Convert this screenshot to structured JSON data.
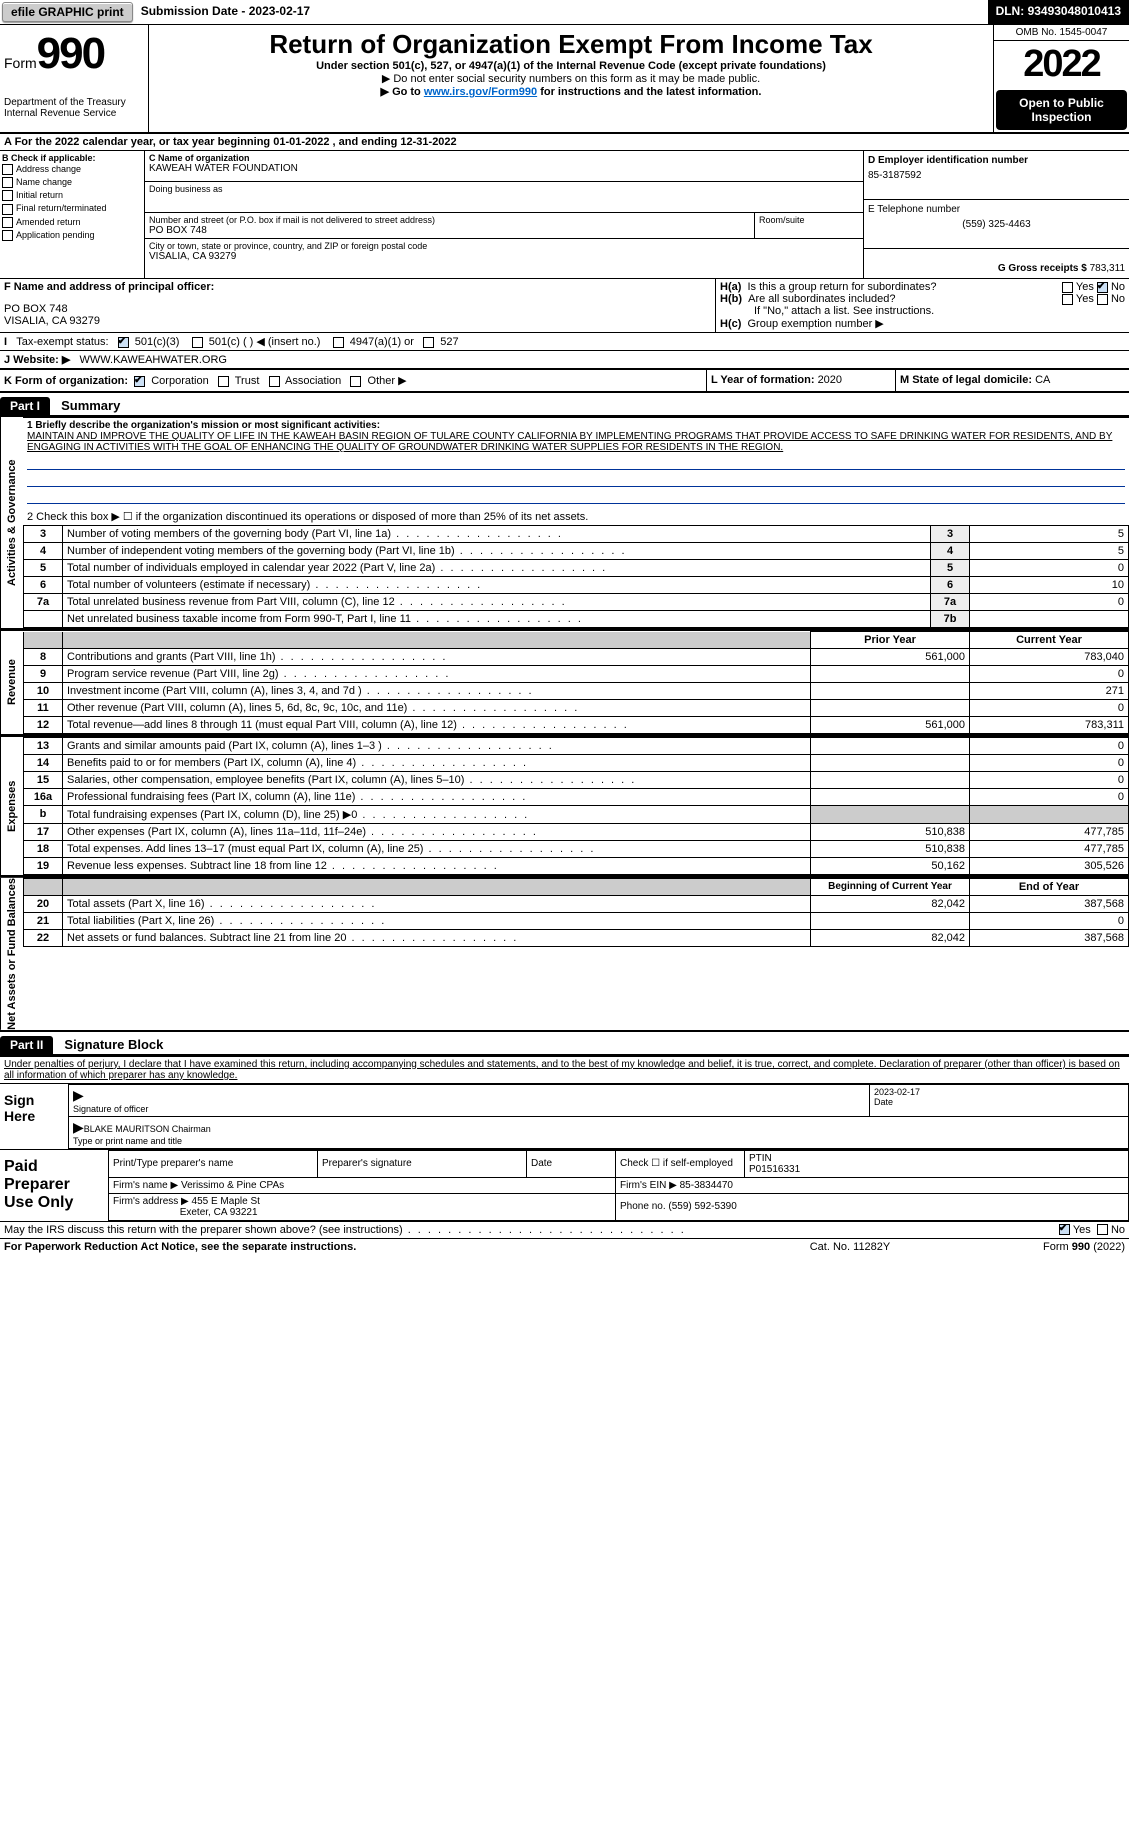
{
  "topbar": {
    "efile": "efile GRAPHIC print",
    "submission_label": "Submission Date - ",
    "submission_date": "2023-02-17",
    "dln_label": "DLN: ",
    "dln": "93493048010413"
  },
  "header": {
    "form_word": "Form",
    "form_num": "990",
    "dept1": "Department of the Treasury",
    "dept2": "Internal Revenue Service",
    "title": "Return of Organization Exempt From Income Tax",
    "sub1": "Under section 501(c), 527, or 4947(a)(1) of the Internal Revenue Code (except private foundations)",
    "sub2": "▶ Do not enter social security numbers on this form as it may be made public.",
    "sub3_prefix": "▶ Go to ",
    "sub3_link": "www.irs.gov/Form990",
    "sub3_suffix": " for instructions and the latest information.",
    "omb": "OMB No. 1545-0047",
    "year": "2022",
    "open": "Open to Public Inspection"
  },
  "row_a": {
    "label": "A For the 2022 calendar year, or tax year beginning ",
    "begin": "01-01-2022",
    "mid": "   , and ending ",
    "end": "12-31-2022"
  },
  "col_b": {
    "header": "B Check if applicable:",
    "items": [
      "Address change",
      "Name change",
      "Initial return",
      "Final return/terminated",
      "Amended return",
      "Application pending"
    ]
  },
  "col_c": {
    "name_label": "C Name of organization",
    "name": "KAWEAH WATER FOUNDATION",
    "dba_label": "Doing business as",
    "dba": "",
    "addr_label": "Number and street (or P.O. box if mail is not delivered to street address)",
    "room_label": "Room/suite",
    "addr": "PO BOX 748",
    "city_label": "City or town, state or province, country, and ZIP or foreign postal code",
    "city": "VISALIA, CA  93279"
  },
  "col_d": {
    "ein_label": "D Employer identification number",
    "ein": "85-3187592",
    "phone_label": "E Telephone number",
    "phone": "(559) 325-4463",
    "gross_label": "G Gross receipts $ ",
    "gross": "783,311"
  },
  "row_f": {
    "label": "F Name and address of principal officer:",
    "addr1": "PO BOX 748",
    "addr2": "VISALIA, CA  93279"
  },
  "row_h": {
    "ha_label": "H(a)  Is this a group return for subordinates?",
    "hb_label": "H(b)  Are all subordinates included?",
    "hb_note": "If \"No,\" attach a list. See instructions.",
    "hc_label": "H(c)  Group exemption number ▶",
    "yes": "Yes",
    "no": "No"
  },
  "row_i": {
    "label": "I  Tax-exempt status:",
    "opt1": "501(c)(3)",
    "opt2": "501(c) (    ) ◀ (insert no.)",
    "opt3": "4947(a)(1) or",
    "opt4": "527"
  },
  "row_j": {
    "label": "J  Website: ▶",
    "value": "WWW.KAWEAHWATER.ORG"
  },
  "row_k": {
    "label": "K Form of organization:",
    "corp": "Corporation",
    "trust": "Trust",
    "assoc": "Association",
    "other": "Other ▶"
  },
  "row_l": {
    "label": "L Year of formation: ",
    "value": "2020"
  },
  "row_m": {
    "label": "M State of legal domicile: ",
    "value": "CA"
  },
  "part1": {
    "hdr": "Part I",
    "title": "Summary",
    "side_gov": "Activities & Governance",
    "side_rev": "Revenue",
    "side_exp": "Expenses",
    "side_net": "Net Assets or Fund Balances",
    "l1_label": "1  Briefly describe the organization's mission or most significant activities:",
    "l1_text": "MAINTAIN AND IMPROVE THE QUALITY OF LIFE IN THE KAWEAH BASIN REGION OF TULARE COUNTY CALIFORNIA BY IMPLEMENTING PROGRAMS THAT PROVIDE ACCESS TO SAFE DRINKING WATER FOR RESIDENTS, AND BY ENGAGING IN ACTIVITIES WITH THE GOAL OF ENHANCING THE QUALITY OF GROUNDWATER DRINKING WATER SUPPLIES FOR RESIDENTS IN THE REGION.",
    "l2": "2  Check this box ▶ ☐  if the organization discontinued its operations or disposed of more than 25% of its net assets.",
    "rows_a": [
      {
        "n": "3",
        "t": "Number of voting members of the governing body (Part VI, line 1a)",
        "box": "3",
        "v": "5"
      },
      {
        "n": "4",
        "t": "Number of independent voting members of the governing body (Part VI, line 1b)",
        "box": "4",
        "v": "5"
      },
      {
        "n": "5",
        "t": "Total number of individuals employed in calendar year 2022 (Part V, line 2a)",
        "box": "5",
        "v": "0"
      },
      {
        "n": "6",
        "t": "Total number of volunteers (estimate if necessary)",
        "box": "6",
        "v": "10"
      },
      {
        "n": "7a",
        "t": "Total unrelated business revenue from Part VIII, column (C), line 12",
        "box": "7a",
        "v": "0"
      },
      {
        "n": "",
        "t": "Net unrelated business taxable income from Form 990-T, Part I, line 11",
        "box": "7b",
        "v": ""
      }
    ],
    "prior_hdr": "Prior Year",
    "curr_hdr": "Current Year",
    "rows_rev": [
      {
        "n": "8",
        "t": "Contributions and grants (Part VIII, line 1h)",
        "p": "561,000",
        "c": "783,040"
      },
      {
        "n": "9",
        "t": "Program service revenue (Part VIII, line 2g)",
        "p": "",
        "c": "0"
      },
      {
        "n": "10",
        "t": "Investment income (Part VIII, column (A), lines 3, 4, and 7d )",
        "p": "",
        "c": "271"
      },
      {
        "n": "11",
        "t": "Other revenue (Part VIII, column (A), lines 5, 6d, 8c, 9c, 10c, and 11e)",
        "p": "",
        "c": "0"
      },
      {
        "n": "12",
        "t": "Total revenue—add lines 8 through 11 (must equal Part VIII, column (A), line 12)",
        "p": "561,000",
        "c": "783,311"
      }
    ],
    "rows_exp": [
      {
        "n": "13",
        "t": "Grants and similar amounts paid (Part IX, column (A), lines 1–3 )",
        "p": "",
        "c": "0"
      },
      {
        "n": "14",
        "t": "Benefits paid to or for members (Part IX, column (A), line 4)",
        "p": "",
        "c": "0"
      },
      {
        "n": "15",
        "t": "Salaries, other compensation, employee benefits (Part IX, column (A), lines 5–10)",
        "p": "",
        "c": "0"
      },
      {
        "n": "16a",
        "t": "Professional fundraising fees (Part IX, column (A), line 11e)",
        "p": "",
        "c": "0"
      },
      {
        "n": "b",
        "t": "Total fundraising expenses (Part IX, column (D), line 25) ▶0",
        "p": "__shade__",
        "c": "__shade__"
      },
      {
        "n": "17",
        "t": "Other expenses (Part IX, column (A), lines 11a–11d, 11f–24e)",
        "p": "510,838",
        "c": "477,785"
      },
      {
        "n": "18",
        "t": "Total expenses. Add lines 13–17 (must equal Part IX, column (A), line 25)",
        "p": "510,838",
        "c": "477,785"
      },
      {
        "n": "19",
        "t": "Revenue less expenses. Subtract line 18 from line 12",
        "p": "50,162",
        "c": "305,526"
      }
    ],
    "net_hdr_p": "Beginning of Current Year",
    "net_hdr_c": "End of Year",
    "rows_net": [
      {
        "n": "20",
        "t": "Total assets (Part X, line 16)",
        "p": "82,042",
        "c": "387,568"
      },
      {
        "n": "21",
        "t": "Total liabilities (Part X, line 26)",
        "p": "",
        "c": "0"
      },
      {
        "n": "22",
        "t": "Net assets or fund balances. Subtract line 21 from line 20",
        "p": "82,042",
        "c": "387,568"
      }
    ]
  },
  "part2": {
    "hdr": "Part II",
    "title": "Signature Block",
    "penalty": "Under penalties of perjury, I declare that I have examined this return, including accompanying schedules and statements, and to the best of my knowledge and belief, it is true, correct, and complete. Declaration of preparer (other than officer) is based on all information of which preparer has any knowledge.",
    "sign_here": "Sign Here",
    "sig_officer": "Signature of officer",
    "sig_date_label": "Date",
    "sig_date": "2023-02-17",
    "sig_name": "BLAKE MAURITSON Chairman",
    "sig_name_label": "Type or print name and title",
    "paid": "Paid Preparer Use Only",
    "prep_name_label": "Print/Type preparer's name",
    "prep_sig_label": "Preparer's signature",
    "prep_date_label": "Date",
    "prep_self_label": "Check ☐ if self-employed",
    "prep_ptin_label": "PTIN",
    "prep_ptin": "P01516331",
    "firm_name_label": "Firm's name    ▶",
    "firm_name": "Verissimo & Pine CPAs",
    "firm_ein_label": "Firm's EIN ▶",
    "firm_ein": "85-3834470",
    "firm_addr_label": "Firm's address ▶",
    "firm_addr1": "455 E Maple St",
    "firm_addr2": "Exeter, CA  93221",
    "firm_phone_label": "Phone no. ",
    "firm_phone": "(559) 592-5390",
    "discuss": "May the IRS discuss this return with the preparer shown above? (see instructions)",
    "discuss_yes": "Yes",
    "discuss_no": "No"
  },
  "footer": {
    "left": "For Paperwork Reduction Act Notice, see the separate instructions.",
    "mid": "Cat. No. 11282Y",
    "right": "Form 990 (2022)"
  },
  "colors": {
    "link": "#0066cc",
    "black": "#000000",
    "shade": "#cccccc",
    "bluechk": "#cce0f5"
  }
}
